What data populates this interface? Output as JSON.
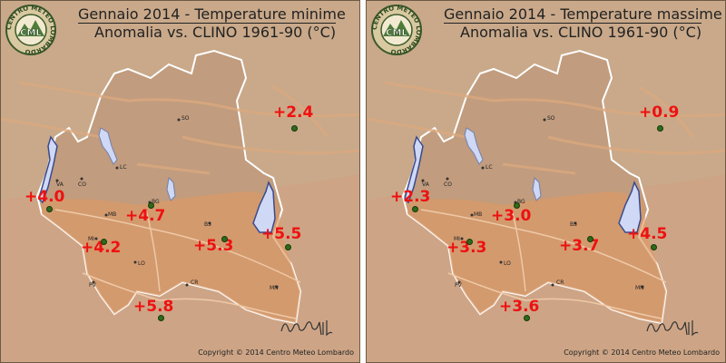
{
  "colors": {
    "background": "#c9a98a",
    "region": "#c19c7e",
    "mountains": "#dba97f",
    "plain": "#dd9966",
    "lake": "#cfd8f5",
    "anomaly_text": "#ee1111",
    "station_dot": "#2e6a1a"
  },
  "logo": {
    "text_ring": "CENTRO METEO LOMBARDO",
    "abbr": "CML"
  },
  "cities": [
    {
      "code": "SO"
    },
    {
      "code": "VA"
    },
    {
      "code": "CO"
    },
    {
      "code": "LC"
    },
    {
      "code": "BG"
    },
    {
      "code": "MB"
    },
    {
      "code": "BS"
    },
    {
      "code": "MI"
    },
    {
      "code": "LO"
    },
    {
      "code": "PV"
    },
    {
      "code": "CR"
    },
    {
      "code": "MN"
    }
  ],
  "panels": [
    {
      "title": "Gennaio 2014 - Temperature minime",
      "subtitle": "Anomalia vs. CLINO 1961-90 (°C)",
      "copyright": "Copyright © 2014 Centro Meteo Lombardo",
      "signature": "Bruno Gilli",
      "anomalies": [
        "+2.4",
        "+4.0",
        "+4.7",
        "+4.2",
        "+5.3",
        "+5.5",
        "+5.8"
      ]
    },
    {
      "title": "Gennaio 2014 - Temperature massime",
      "subtitle": "Anomalia vs. CLINO 1961-90 (°C)",
      "copyright": "Copyright © 2014 Centro Meteo Lombardo",
      "signature": "Bruno Gilli",
      "anomalies": [
        "+0.9",
        "+2.3",
        "+3.0",
        "+3.3",
        "+3.7",
        "+4.5",
        "+3.6"
      ]
    }
  ]
}
